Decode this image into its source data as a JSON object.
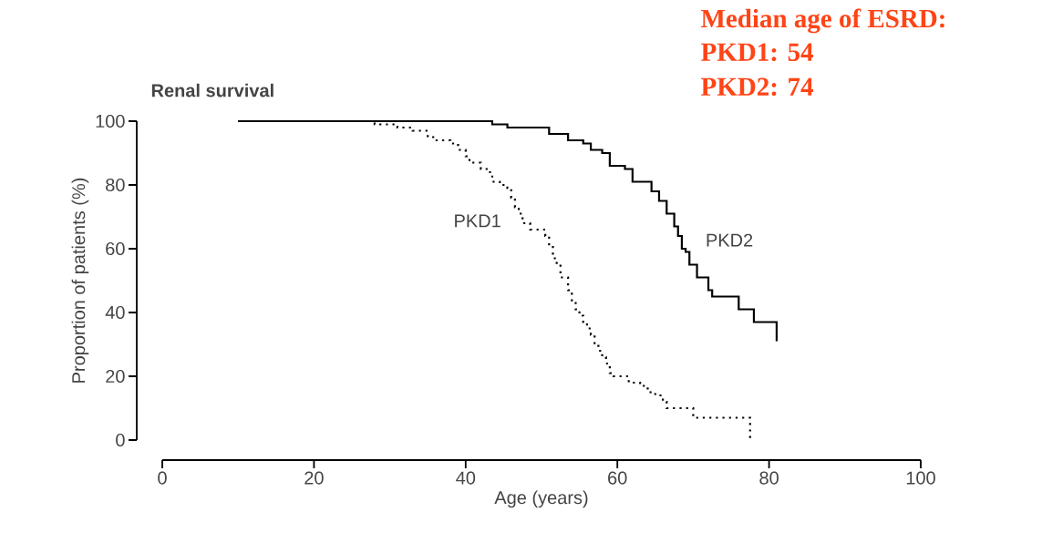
{
  "chart_data": {
    "type": "step",
    "title": "Renal survival",
    "xlabel": "Age (years)",
    "ylabel": "Proportion of patients (%)",
    "xlim": [
      0,
      100
    ],
    "ylim": [
      0,
      100
    ],
    "xticks": [
      0,
      20,
      40,
      60,
      80,
      100
    ],
    "yticks": [
      0,
      20,
      40,
      60,
      80,
      100
    ],
    "series": [
      {
        "name": "PKD1",
        "color": "#000000",
        "line_style": "dotted",
        "x": [
          10,
          28,
          31,
          33,
          35,
          36,
          38,
          39,
          40,
          40.5,
          42,
          43,
          43.5,
          44.5,
          45.5,
          46,
          46.5,
          47,
          47.5,
          48.5,
          50.5,
          51,
          51.5,
          52,
          52.5,
          53.5,
          54,
          54.5,
          55,
          55.5,
          56,
          56.5,
          57,
          57.5,
          58,
          58.5,
          59,
          59.5,
          61.5,
          63,
          64,
          65,
          66,
          66.5,
          70,
          77.5
        ],
        "values": [
          100,
          99,
          98,
          97,
          95,
          94,
          93,
          91,
          89,
          87,
          85,
          84,
          81,
          80,
          79,
          76,
          73,
          71,
          68,
          66,
          64,
          61,
          57,
          55,
          51,
          47,
          43,
          41,
          39,
          37,
          35,
          33,
          30,
          28,
          26,
          24,
          21,
          20,
          18,
          17,
          15,
          14,
          12,
          10,
          7,
          0
        ]
      },
      {
        "name": "PKD2",
        "color": "#000000",
        "line_style": "solid",
        "x": [
          10,
          43.5,
          45.5,
          51,
          53.5,
          55.5,
          56.5,
          58,
          59,
          61,
          62,
          64.5,
          65.5,
          66.5,
          67.5,
          68,
          68.5,
          69,
          69.5,
          70.5,
          72,
          72.5,
          76,
          78,
          81
        ],
        "values": [
          100,
          99,
          98,
          96,
          94,
          93,
          91,
          90,
          86,
          85,
          81,
          78,
          75,
          71,
          67,
          64,
          60,
          59,
          55,
          51,
          47,
          45,
          41,
          37,
          31
        ]
      }
    ],
    "annotations": [
      "Median age of ESRD:",
      "PKD1:  54",
      "PKD2:  74"
    ]
  }
}
